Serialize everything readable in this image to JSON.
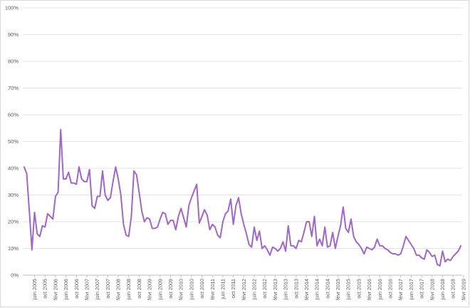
{
  "chart_data": {
    "type": "line",
    "title": "",
    "xlabel": "",
    "ylabel": "",
    "ylim": [
      0,
      100
    ],
    "y_unit": "%",
    "y_ticks": [
      "0%",
      "10%",
      "20%",
      "30%",
      "40%",
      "50%",
      "60%",
      "70%",
      "80%",
      "90%",
      "100%"
    ],
    "x_start": "2005-02",
    "x_end": "2019-08",
    "x_tick_labels": [
      "juin 2005",
      "oct 2005",
      "févr 2006",
      "juin 2006",
      "oct 2006",
      "févr 2007",
      "juin 2007",
      "oct 2007",
      "févr 2008",
      "juin 2008",
      "oct 2008",
      "févr 2009",
      "juin 2009",
      "oct 2009",
      "févr 2010",
      "juin 2010",
      "oct 2010",
      "févr 2011",
      "juin 2011",
      "oct 2011",
      "févr 2012",
      "juin 2012",
      "oct 2012",
      "févr 2013",
      "juin 2013",
      "oct 2013",
      "févr 2014",
      "juin 2014",
      "oct 2014",
      "févr 2015",
      "juin 2015",
      "oct 2015",
      "févr 2016",
      "juin 2016",
      "oct 2016",
      "févr 2017",
      "juin 2017",
      "oct 2017",
      "févr 2018",
      "juin 2018",
      "oct 2018",
      "févr 2019"
    ],
    "grid": true,
    "line_color": "#a066c8",
    "series": [
      {
        "values": [
          40.5,
          38,
          24,
          9.5,
          23.5,
          15.5,
          14.5,
          18.5,
          18,
          23,
          22,
          21,
          29.5,
          31,
          54.5,
          36,
          36,
          38.5,
          34.5,
          34.5,
          34,
          40.5,
          36,
          35,
          35,
          39.5,
          26,
          25,
          29.5,
          29.5,
          39,
          30,
          28,
          29,
          35,
          40.5,
          36,
          30,
          19,
          15,
          14.5,
          22,
          39,
          37.5,
          31,
          24,
          20,
          21.5,
          21,
          17.5,
          17.5,
          18,
          21,
          23.5,
          23,
          19,
          20.5,
          20.5,
          17,
          22,
          25,
          21.5,
          18,
          26,
          29,
          31.5,
          34,
          19.5,
          22,
          24.5,
          22.5,
          17,
          19,
          18,
          15,
          14,
          20,
          23,
          24,
          28.5,
          19,
          26,
          29,
          23,
          19,
          15.5,
          11.5,
          10.5,
          18,
          13,
          16.5,
          10,
          11,
          9.5,
          7.5,
          10.5,
          10,
          9,
          10,
          12.5,
          9,
          18.5,
          11,
          11,
          10,
          13,
          12.5,
          16,
          20,
          20,
          14.5,
          22,
          11,
          13.5,
          11,
          18,
          10.5,
          11,
          16,
          10,
          14.5,
          18.5,
          25.5,
          17.5,
          16,
          21,
          14.5,
          12.5,
          11.5,
          10,
          8,
          10.5,
          10,
          9.5,
          10.5,
          13.5,
          11,
          11,
          10,
          9.5,
          8.5,
          8,
          8,
          7.5,
          8,
          11,
          14.5,
          13,
          11.5,
          10,
          7.5,
          7.5,
          6.5,
          6,
          9.5,
          8.5,
          7,
          7.5,
          4,
          3.5,
          9,
          5,
          6,
          5.5,
          7,
          8,
          9,
          11
        ]
      }
    ]
  }
}
